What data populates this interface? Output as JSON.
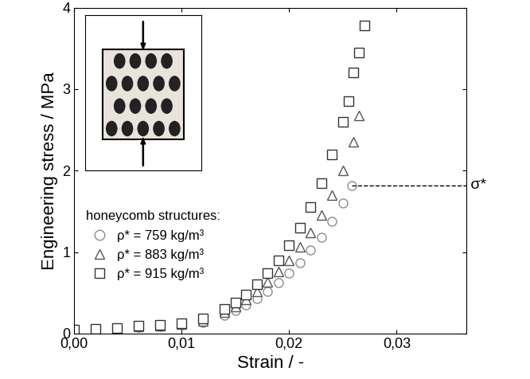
{
  "chart_data": {
    "type": "scatter",
    "x_label": "Strain / -",
    "y_label": "Engineering stress / MPa",
    "legend": "center left",
    "legend_title": "honeycomb structures:",
    "xlim": [
      0,
      0.0365
    ],
    "xticks": [
      {
        "value": 0,
        "label": "0,00"
      },
      {
        "value": 0.01,
        "label": "0,01"
      },
      {
        "value": 0.02,
        "label": "0,02"
      },
      {
        "value": 0.03,
        "label": "0,03"
      }
    ],
    "ylim": [
      0,
      4
    ],
    "yticks": [
      0,
      1,
      2,
      3,
      4
    ],
    "grid": false,
    "series": [
      {
        "name": "ρ* = 759 kg/m³",
        "color": "#8c8c8c",
        "marker": "circle",
        "x": [
          0,
          0.002,
          0.004,
          0.006,
          0.008,
          0.01,
          0.012,
          0.014,
          0.015,
          0.016,
          0.017,
          0.018,
          0.019,
          0.02,
          0.021,
          0.022,
          0.023,
          0.024,
          0.025,
          0.0258
        ],
        "values": [
          0.05,
          0.06,
          0.07,
          0.08,
          0.09,
          0.11,
          0.14,
          0.22,
          0.28,
          0.35,
          0.43,
          0.52,
          0.62,
          0.74,
          0.87,
          1.02,
          1.18,
          1.38,
          1.6,
          1.82
        ]
      },
      {
        "name": "ρ* = 883 kg/m³",
        "color": "#555555",
        "marker": "triangle",
        "x": [
          0,
          0.002,
          0.004,
          0.006,
          0.008,
          0.01,
          0.012,
          0.014,
          0.015,
          0.016,
          0.017,
          0.018,
          0.019,
          0.02,
          0.021,
          0.022,
          0.023,
          0.024,
          0.025,
          0.026,
          0.0265
        ],
        "values": [
          0.05,
          0.06,
          0.07,
          0.09,
          0.1,
          0.12,
          0.16,
          0.26,
          0.33,
          0.42,
          0.52,
          0.63,
          0.76,
          0.9,
          1.06,
          1.24,
          1.45,
          1.7,
          2.0,
          2.35,
          2.68
        ]
      },
      {
        "name": "ρ* = 915 kg/m³",
        "color": "#333333",
        "marker": "square",
        "x": [
          0,
          0.002,
          0.004,
          0.006,
          0.008,
          0.01,
          0.012,
          0.014,
          0.015,
          0.016,
          0.017,
          0.018,
          0.019,
          0.02,
          0.021,
          0.022,
          0.023,
          0.024,
          0.025,
          0.0255,
          0.026,
          0.0265,
          0.027
        ],
        "values": [
          0.05,
          0.06,
          0.07,
          0.1,
          0.11,
          0.13,
          0.18,
          0.3,
          0.38,
          0.48,
          0.6,
          0.74,
          0.9,
          1.08,
          1.3,
          1.55,
          1.85,
          2.2,
          2.6,
          2.85,
          3.2,
          3.45,
          3.78
        ]
      }
    ],
    "annotations": [
      {
        "text": "σ*",
        "y": 1.82
      }
    ]
  }
}
